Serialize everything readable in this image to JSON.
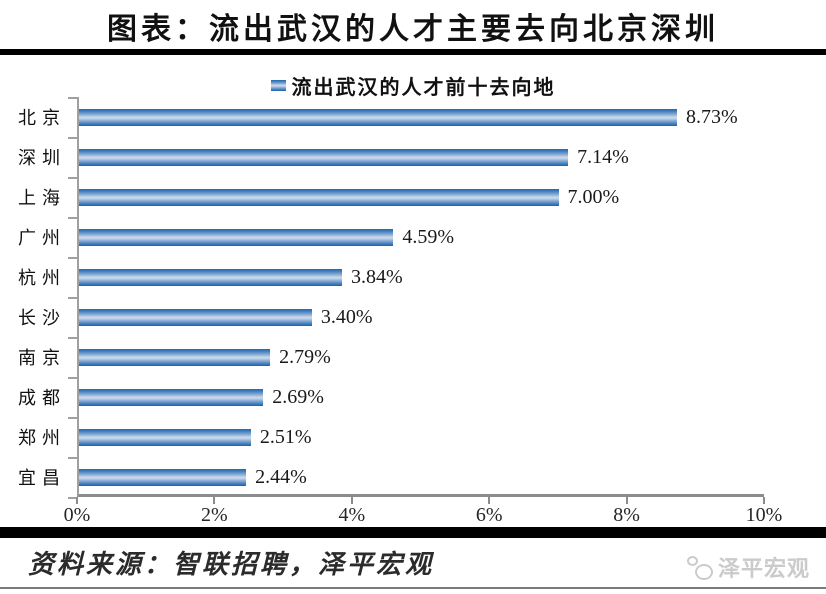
{
  "title": "图表：流出武汉的人才主要去向北京深圳",
  "legend": {
    "label": "流出武汉的人才前十去向地"
  },
  "chart_data": {
    "type": "bar",
    "orientation": "horizontal",
    "title": "流出武汉的人才前十去向地",
    "categories": [
      "北京",
      "深圳",
      "上海",
      "广州",
      "杭州",
      "长沙",
      "南京",
      "成都",
      "郑州",
      "宜昌"
    ],
    "values": [
      8.73,
      7.14,
      7.0,
      4.59,
      3.84,
      3.4,
      2.79,
      2.69,
      2.51,
      2.44
    ],
    "value_labels": [
      "8.73%",
      "7.14%",
      "7.00%",
      "4.59%",
      "3.84%",
      "3.40%",
      "2.79%",
      "2.69%",
      "2.51%",
      "2.44%"
    ],
    "xlabel": "",
    "ylabel": "",
    "xlim": [
      0,
      10
    ],
    "x_ticks": [
      "0%",
      "2%",
      "4%",
      "6%",
      "8%",
      "10%"
    ],
    "grid": false,
    "legend_position": "top",
    "bar_color_dark": "#2368B0",
    "bar_color_light": "#CBDAEC"
  },
  "footer": {
    "source": "资料来源：智联招聘，泽平宏观",
    "watermark": "泽平宏观"
  },
  "colors": {
    "axis": "#A0A0A0",
    "divider": "#000000",
    "watermark": "#CBCBCB"
  }
}
